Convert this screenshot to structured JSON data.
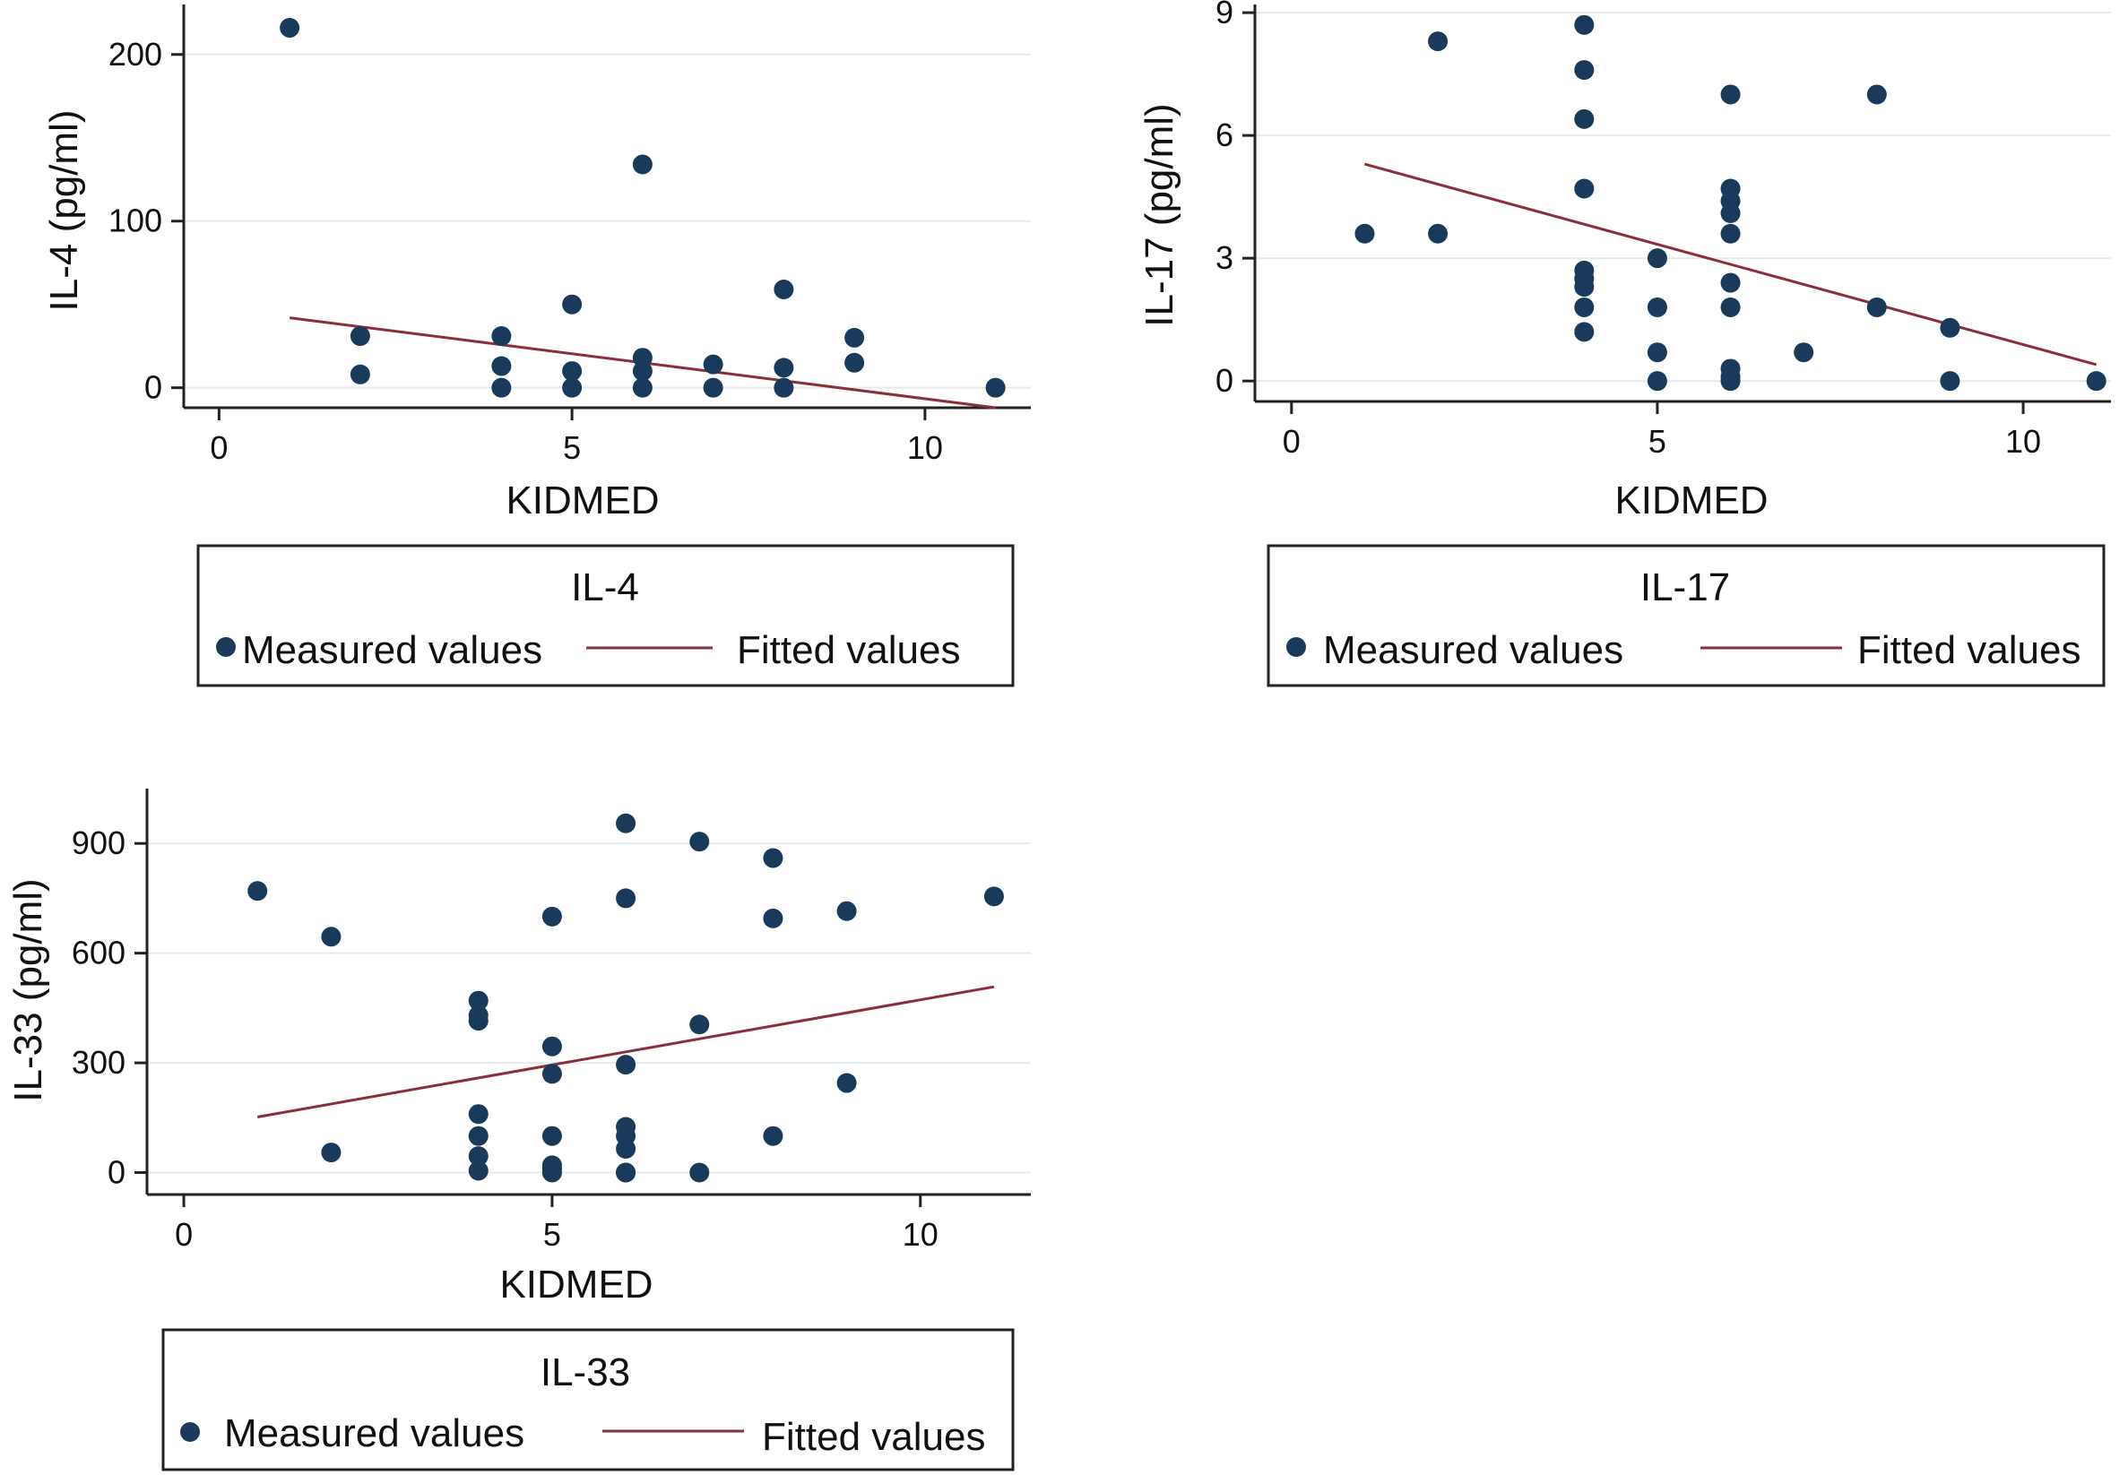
{
  "figure": {
    "colors": {
      "marker": "#1a3a5c",
      "fit": "#8b2e3c",
      "grid": "#e4ebef",
      "axis": "#222222"
    }
  },
  "chart_data": [
    {
      "type": "scatter",
      "id": "il4",
      "title": "IL-4",
      "xlabel": "KIDMED",
      "ylabel": "IL-4 (pg/ml)",
      "xlim": [
        -0.5,
        11.5
      ],
      "ylim": [
        -12,
        230
      ],
      "xticks": [
        0,
        5,
        10
      ],
      "yticks": [
        0,
        100,
        200
      ],
      "grid": true,
      "legend": {
        "title": "IL-4",
        "entries": [
          "Measured values",
          "Fitted values"
        ]
      },
      "series": [
        {
          "name": "Measured values",
          "kind": "points",
          "x": [
            1,
            2,
            2,
            4,
            4,
            4,
            5,
            5,
            5,
            6,
            6,
            6,
            6,
            7,
            7,
            8,
            8,
            8,
            9,
            9,
            11
          ],
          "y": [
            216,
            31,
            8,
            31,
            13,
            0,
            50,
            10,
            0,
            134,
            18,
            10,
            0,
            14,
            0,
            59,
            12,
            0,
            30,
            15,
            0
          ]
        },
        {
          "name": "Fitted values",
          "kind": "line",
          "x": [
            1,
            11
          ],
          "y": [
            42,
            -12
          ]
        }
      ]
    },
    {
      "type": "scatter",
      "id": "il17",
      "title": "IL-17",
      "xlabel": "KIDMED",
      "ylabel": "IL-17 (pg/ml)",
      "xlim": [
        -0.5,
        11.2
      ],
      "ylim": [
        -0.5,
        9.2
      ],
      "xticks": [
        0,
        5,
        10
      ],
      "yticks": [
        0,
        3,
        6,
        9
      ],
      "grid": true,
      "legend": {
        "title": "IL-17",
        "entries": [
          "Measured values",
          "Fitted values"
        ]
      },
      "series": [
        {
          "name": "Measured values",
          "kind": "points",
          "x": [
            1,
            2,
            2,
            4,
            4,
            4,
            4,
            4,
            4,
            4,
            4,
            4,
            5,
            5,
            5,
            5,
            6,
            6,
            6,
            6,
            6,
            6,
            6,
            6,
            6,
            6,
            7,
            8,
            8,
            9,
            9,
            11
          ],
          "y": [
            3.6,
            8.3,
            3.6,
            8.7,
            7.6,
            6.4,
            4.7,
            2.7,
            2.5,
            2.3,
            1.8,
            1.2,
            3.0,
            1.8,
            0.7,
            0.0,
            7.0,
            4.7,
            4.4,
            4.1,
            3.6,
            2.4,
            1.8,
            0.3,
            0.1,
            0.0,
            0.7,
            7.0,
            1.8,
            1.3,
            0.0,
            0.0
          ]
        },
        {
          "name": "Fitted values",
          "kind": "line",
          "x": [
            1,
            11
          ],
          "y": [
            5.3,
            0.4
          ]
        }
      ]
    },
    {
      "type": "scatter",
      "id": "il33",
      "title": "IL-33",
      "xlabel": "KIDMED",
      "ylabel": "IL-33 (pg/ml)",
      "xlim": [
        -0.5,
        11.5
      ],
      "ylim": [
        -60,
        1050
      ],
      "xticks": [
        0,
        5,
        10
      ],
      "yticks": [
        0,
        300,
        600,
        900
      ],
      "grid": true,
      "legend": {
        "title": "IL-33",
        "entries": [
          "Measured values",
          "Fitted values"
        ]
      },
      "series": [
        {
          "name": "Measured values",
          "kind": "points",
          "x": [
            1,
            2,
            2,
            4,
            4,
            4,
            4,
            4,
            4,
            4,
            5,
            5,
            5,
            5,
            5,
            5,
            5,
            6,
            6,
            6,
            6,
            6,
            6,
            6,
            6,
            7,
            7,
            7,
            8,
            8,
            8,
            9,
            9,
            11
          ],
          "y": [
            770,
            645,
            55,
            470,
            430,
            415,
            160,
            100,
            45,
            5,
            700,
            345,
            270,
            100,
            20,
            10,
            0,
            955,
            750,
            295,
            125,
            100,
            65,
            0,
            0,
            905,
            405,
            0,
            860,
            695,
            100,
            715,
            245,
            755
          ]
        },
        {
          "name": "Fitted values",
          "kind": "line",
          "x": [
            1,
            11
          ],
          "y": [
            152,
            508
          ]
        }
      ]
    }
  ]
}
